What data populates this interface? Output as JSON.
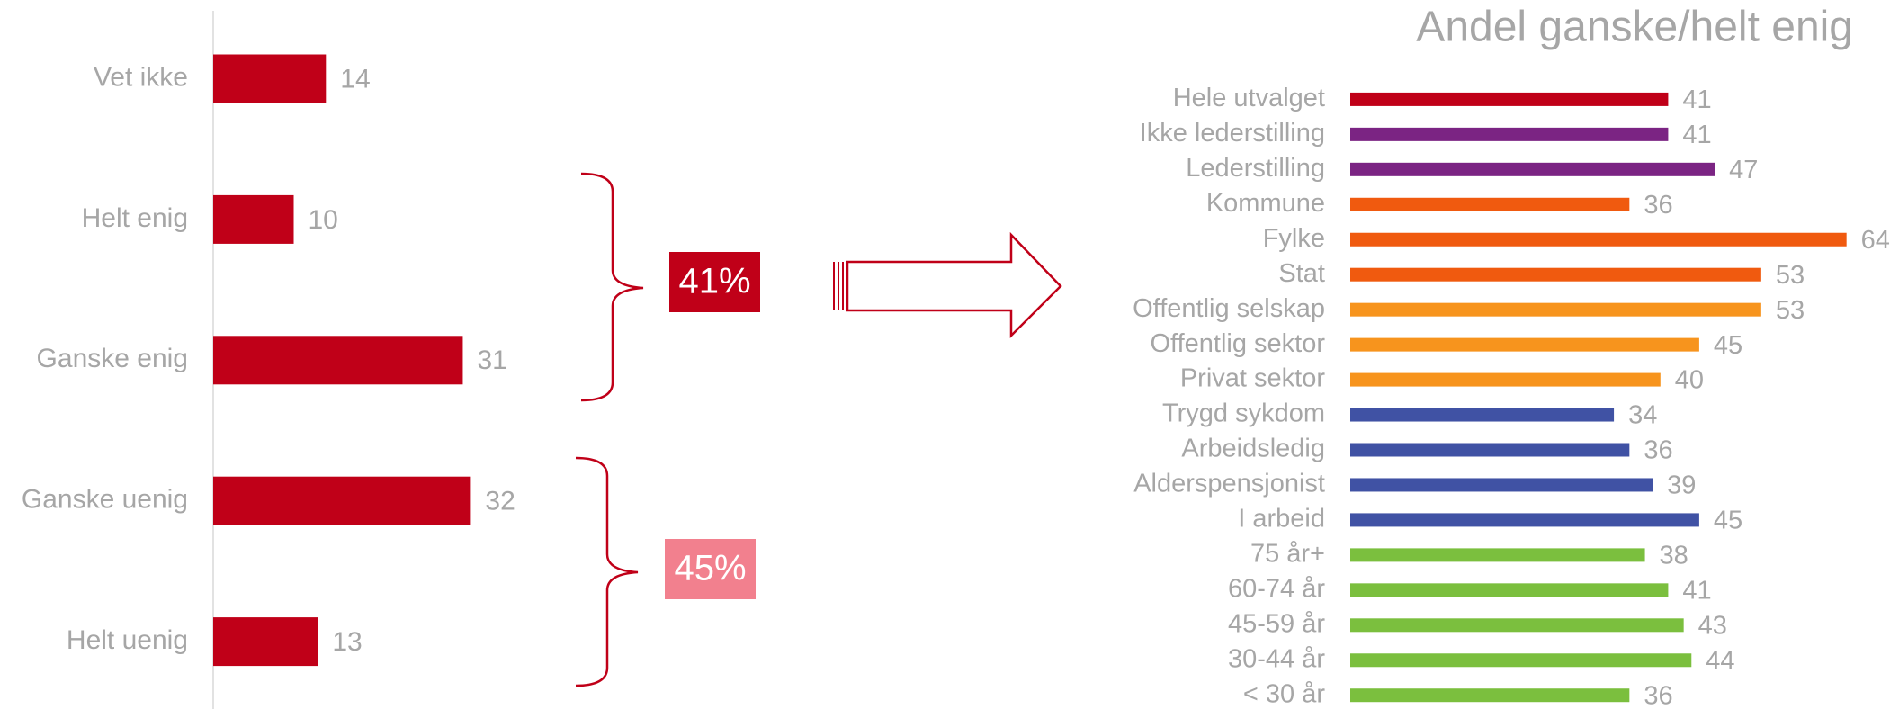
{
  "chart_data": [
    {
      "type": "bar",
      "orientation": "horizontal",
      "categories": [
        "Vet ikke",
        "Helt enig",
        "Ganske enig",
        "Ganske uenig",
        "Helt uenig"
      ],
      "values": [
        14,
        10,
        31,
        32,
        13
      ],
      "color": "#c00018",
      "xlim": [
        0,
        50
      ],
      "annotations": [
        "41%",
        "45%"
      ]
    },
    {
      "type": "bar",
      "orientation": "horizontal",
      "title": "Andel ganske/helt enig",
      "categories": [
        "Hele utvalget",
        "Ikke lederstilling",
        "Lederstilling",
        "Kommune",
        "Fylke",
        "Stat",
        "Offentlig selskap",
        "Offentlig sektor",
        "Privat sektor",
        "Trygd sykdom",
        "Arbeidsledig",
        "Alderspensjonist",
        "I arbeid",
        "75 år+",
        "60-74 år",
        "45-59 år",
        "30-44 år",
        "< 30 år"
      ],
      "values": [
        41,
        41,
        47,
        36,
        64,
        53,
        53,
        45,
        40,
        34,
        36,
        39,
        45,
        38,
        41,
        43,
        44,
        36
      ],
      "colors": [
        "#c00018",
        "#7b2483",
        "#7b2483",
        "#f05a0f",
        "#f05a0f",
        "#f05a0f",
        "#f7941d",
        "#f7941d",
        "#f7941d",
        "#4052a4",
        "#4052a4",
        "#4052a4",
        "#4052a4",
        "#7bbf3e",
        "#7bbf3e",
        "#7bbf3e",
        "#7bbf3e",
        "#7bbf3e"
      ],
      "xlim": [
        0,
        70
      ]
    }
  ]
}
